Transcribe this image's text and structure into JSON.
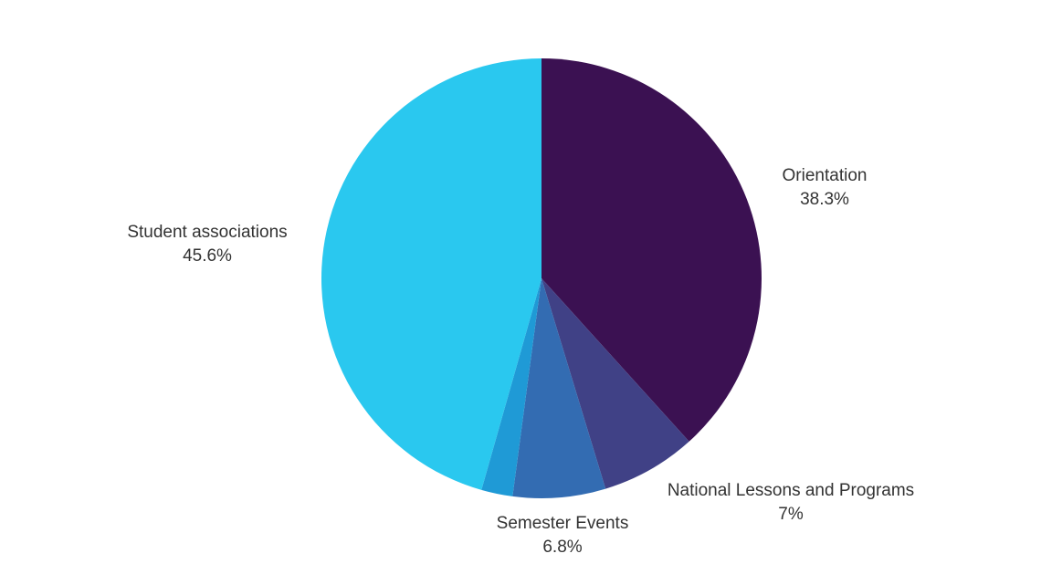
{
  "chart_data": {
    "type": "pie",
    "title": "",
    "series": [
      {
        "values": [
          38.3,
          7,
          6.8,
          2.3,
          45.6
        ],
        "labels": [
          "Orientation",
          "National Lessons and Programs",
          "Semester Events",
          "",
          "Student associations"
        ],
        "value_labels": [
          "38.3%",
          "7%",
          "6.8%",
          "",
          "45.6%"
        ],
        "colors": [
          "#3b1152",
          "#404186",
          "#336cb2",
          "#1f9ad6",
          "#2ac8ef"
        ]
      }
    ],
    "start_angle": "12 o'clock",
    "direction": "clockwise",
    "legend": "none"
  }
}
